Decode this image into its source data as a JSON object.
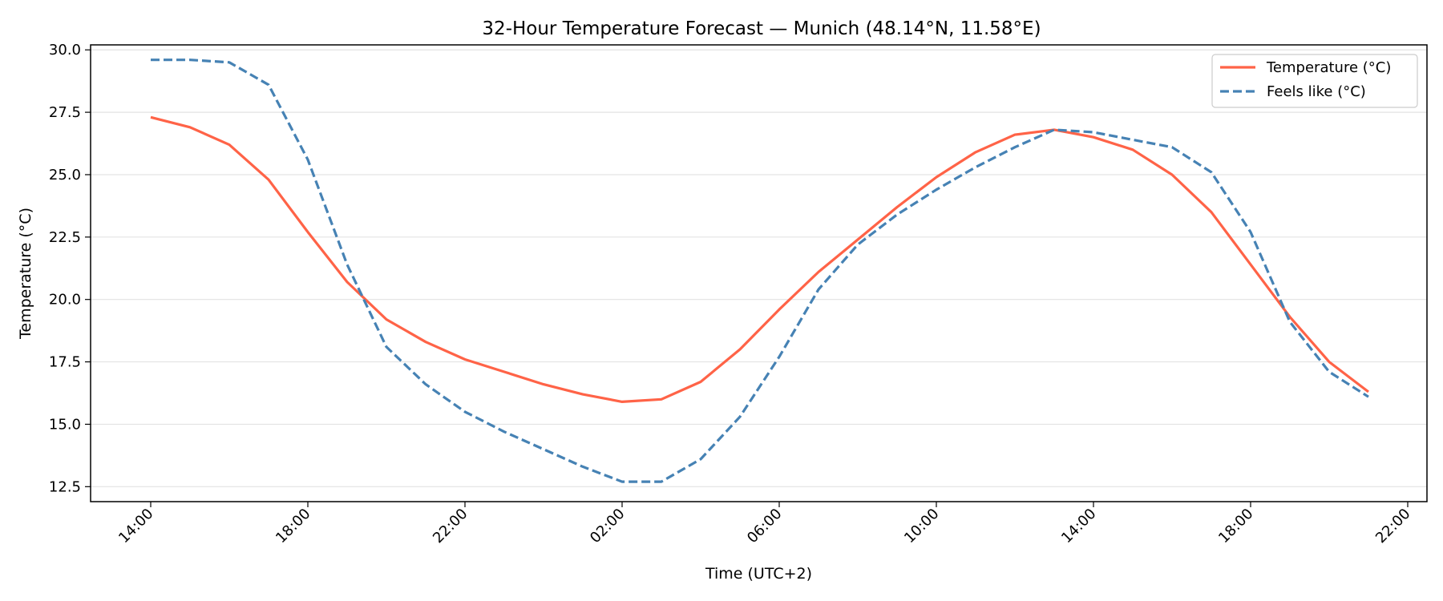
{
  "chart_data": {
    "type": "line",
    "title": "32-Hour Temperature Forecast — Munich (48.14°N, 11.58°E)",
    "xlabel": "Time (UTC+2)",
    "ylabel": "Temperature (°C)",
    "x": [
      "14:00",
      "15:00",
      "16:00",
      "17:00",
      "18:00",
      "19:00",
      "20:00",
      "21:00",
      "22:00",
      "23:00",
      "00:00",
      "01:00",
      "02:00",
      "03:00",
      "04:00",
      "05:00",
      "06:00",
      "07:00",
      "08:00",
      "09:00",
      "10:00",
      "11:00",
      "12:00",
      "13:00",
      "14:00",
      "15:00",
      "16:00",
      "17:00",
      "18:00",
      "19:00",
      "20:00",
      "21:00"
    ],
    "x_ticks": [
      "14:00",
      "18:00",
      "22:00",
      "02:00",
      "06:00",
      "10:00",
      "14:00",
      "18:00",
      "22:00"
    ],
    "ylim": [
      11.9,
      30.2
    ],
    "y_ticks": [
      "12.5",
      "15.0",
      "17.5",
      "20.0",
      "22.5",
      "25.0",
      "27.5",
      "30.0"
    ],
    "grid": "horizontal",
    "legend_position": "top-right",
    "series": [
      {
        "name": "Temperature (°C)",
        "color": "#ff6347",
        "style": "solid",
        "values": [
          27.3,
          26.9,
          26.2,
          24.8,
          22.7,
          20.7,
          19.2,
          18.3,
          17.6,
          17.1,
          16.6,
          16.2,
          15.9,
          16.0,
          16.7,
          18.0,
          19.6,
          21.1,
          22.4,
          23.7,
          24.9,
          25.9,
          26.6,
          26.8,
          26.5,
          26.0,
          25.0,
          23.5,
          21.4,
          19.3,
          17.5,
          16.3
        ]
      },
      {
        "name": "Feels like (°C)",
        "color": "#4682b4",
        "style": "dashed",
        "values": [
          29.6,
          29.6,
          29.5,
          28.6,
          25.6,
          21.4,
          18.1,
          16.6,
          15.5,
          14.7,
          14.0,
          13.3,
          12.7,
          12.7,
          13.6,
          15.3,
          17.7,
          20.4,
          22.2,
          23.4,
          24.4,
          25.3,
          26.1,
          26.8,
          26.7,
          26.4,
          26.1,
          25.1,
          22.7,
          19.1,
          17.1,
          16.1
        ]
      }
    ]
  }
}
